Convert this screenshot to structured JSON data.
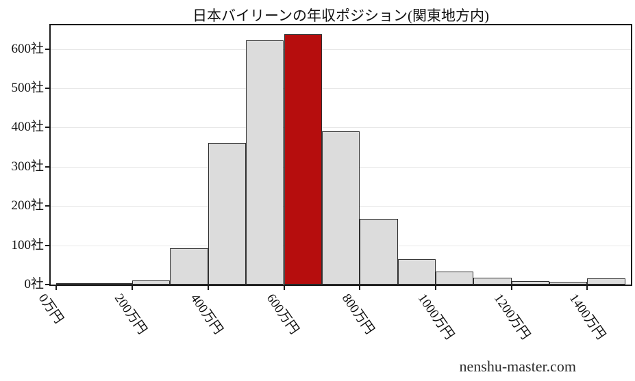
{
  "chart_data": {
    "type": "bar",
    "title": "日本バイリーンの年収ポジション(関東地方内)",
    "xlabel": "",
    "ylabel": "",
    "watermark": "nenshu-master.com",
    "x_tick_values": [
      0,
      200,
      400,
      600,
      800,
      1000,
      1200,
      1400
    ],
    "x_tick_labels": [
      "0万円",
      "200万円",
      "400万円",
      "600万円",
      "800万円",
      "1000万円",
      "1200万円",
      "1400万円"
    ],
    "y_tick_values": [
      0,
      100,
      200,
      300,
      400,
      500,
      600
    ],
    "y_tick_labels": [
      "0社",
      "100社",
      "200社",
      "300社",
      "400社",
      "500社",
      "600社"
    ],
    "bins": {
      "start": 0,
      "width": 100,
      "count": 15
    },
    "values": [
      1,
      3,
      10,
      92,
      360,
      622,
      638,
      390,
      168,
      64,
      33,
      17,
      9,
      7,
      16
    ],
    "highlight_index": 6,
    "xlim": [
      -15,
      1515
    ],
    "ylim": [
      0,
      660
    ],
    "grid": "horizontal",
    "legend": "none",
    "colors": {
      "bar_fill": "#dcdcdc",
      "bar_edge": "#2f2f2f",
      "highlight_fill": "#b60d0d",
      "grid": "#e7e7e7",
      "spine": "#1a1a1a",
      "text": "#111111"
    }
  }
}
